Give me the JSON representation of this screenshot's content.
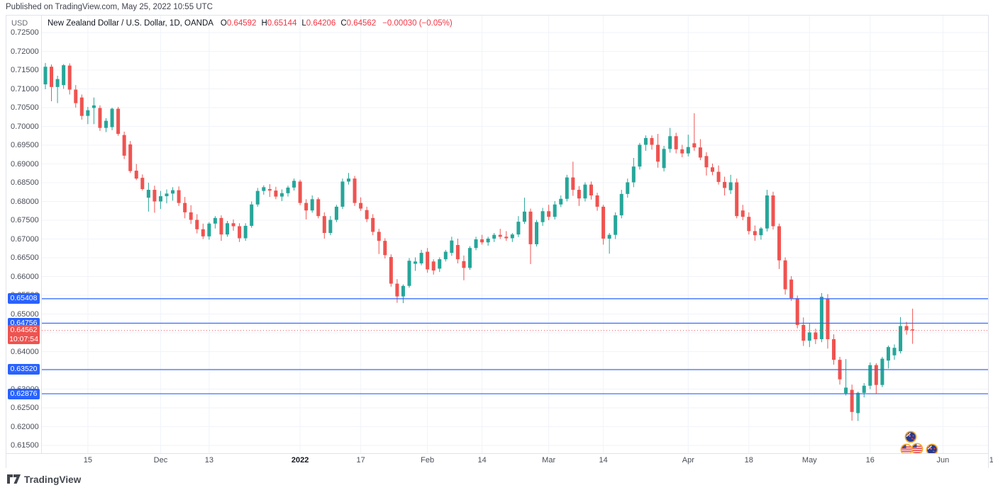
{
  "published_bar": {
    "text": "Published on TradingView.com, May 25, 2022 10:55 UTC"
  },
  "watermark": {
    "brand": "TradingView"
  },
  "price_axis": {
    "currency": "USD"
  },
  "symbol_line": {
    "title": "New Zealand Dollar / U.S. Dollar, 1D, OANDA",
    "ohlc": [
      {
        "label": "O",
        "value": "0.64592"
      },
      {
        "label": "H",
        "value": "0.65144"
      },
      {
        "label": "L",
        "value": "0.64206"
      },
      {
        "label": "C",
        "value": "0.64562"
      }
    ],
    "change": "−0.00030 (−0.05%)"
  },
  "chart_data": {
    "type": "candlestick",
    "title": "New Zealand Dollar / U.S. Dollar",
    "timeframe": "1D",
    "exchange": "OANDA",
    "legend_position": "top-left",
    "grid": true,
    "colors": {
      "up": "#26a69a",
      "down": "#ef5350",
      "grid": "#f0f3fa",
      "line_blue": "#2962ff",
      "last_red": "#ef5350"
    },
    "y_axis": {
      "min": 0.615,
      "max": 0.725,
      "tick_step": 0.005,
      "decimals": 5
    },
    "x_ticks": [
      {
        "index": 7,
        "label": "15"
      },
      {
        "index": 19,
        "label": "Dec"
      },
      {
        "index": 27,
        "label": "13"
      },
      {
        "index": 42,
        "label": "2022",
        "bold": true
      },
      {
        "index": 52,
        "label": "17"
      },
      {
        "index": 63,
        "label": "Feb"
      },
      {
        "index": 72,
        "label": "14"
      },
      {
        "index": 83,
        "label": "Mar"
      },
      {
        "index": 92,
        "label": "14"
      },
      {
        "index": 106,
        "label": "Apr"
      },
      {
        "index": 116,
        "label": "18"
      },
      {
        "index": 126,
        "label": "May"
      },
      {
        "index": 136,
        "label": "16"
      },
      {
        "index": 148,
        "label": "Jun"
      },
      {
        "index": 156,
        "label": "1"
      }
    ],
    "price_lines": [
      {
        "price": 0.65408,
        "label": "0.65408"
      },
      {
        "price": 0.64756,
        "label": "0.64756"
      },
      {
        "price": 0.6352,
        "label": "0.63520"
      },
      {
        "price": 0.62876,
        "label": "0.62876"
      }
    ],
    "last_price": {
      "price": 0.64562,
      "label": "0.64562",
      "countdown": "10:07:54"
    },
    "event_icons": [
      {
        "flag": "nz",
        "x": 1283,
        "y": 616
      },
      {
        "flag": "us",
        "x": 1277,
        "y": 634
      },
      {
        "flag": "us",
        "x": 1292,
        "y": 633
      },
      {
        "flag": "nz",
        "x": 1313,
        "y": 634
      }
    ],
    "candles": [
      [
        "Nov 4",
        0.7112,
        0.7169,
        0.7099,
        0.7159
      ],
      [
        "Nov 5",
        0.7159,
        0.7165,
        0.7067,
        0.7105
      ],
      [
        "Nov 8",
        0.7105,
        0.7135,
        0.7062,
        0.7126
      ],
      [
        "Nov 9",
        0.711,
        0.7166,
        0.71,
        0.7163
      ],
      [
        "Nov 10",
        0.7162,
        0.7168,
        0.7085,
        0.7098
      ],
      [
        "Nov 11",
        0.7098,
        0.711,
        0.705,
        0.7062
      ],
      [
        "Nov 12",
        0.7077,
        0.7085,
        0.7018,
        0.7028
      ],
      [
        "Nov 15",
        0.7028,
        0.7052,
        0.7006,
        0.7043
      ],
      [
        "Nov 16",
        0.7049,
        0.7077,
        0.7006,
        0.7056
      ],
      [
        "Nov 17",
        0.7049,
        0.7056,
        0.6988,
        0.6996
      ],
      [
        "Nov 18",
        0.6996,
        0.7022,
        0.6985,
        0.7015
      ],
      [
        "Nov 19",
        0.6998,
        0.705,
        0.699,
        0.7047
      ],
      [
        "Nov 22",
        0.7047,
        0.7052,
        0.6975,
        0.698
      ],
      [
        "Nov 23",
        0.6977,
        0.6986,
        0.6913,
        0.6922
      ],
      [
        "Nov 24",
        0.6952,
        0.6961,
        0.6876,
        0.6881
      ],
      [
        "Nov 25",
        0.6882,
        0.69,
        0.6857,
        0.6861
      ],
      [
        "Nov 26",
        0.6863,
        0.6872,
        0.6829,
        0.6833
      ],
      [
        "Nov 29",
        0.681,
        0.685,
        0.6773,
        0.6831
      ],
      [
        "Nov 30",
        0.6831,
        0.6842,
        0.677,
        0.68
      ],
      [
        "Dec 1",
        0.68,
        0.6828,
        0.678,
        0.6814
      ],
      [
        "Dec 2",
        0.6814,
        0.6832,
        0.6795,
        0.6821
      ],
      [
        "Dec 3",
        0.6821,
        0.6838,
        0.6802,
        0.683
      ],
      [
        "Dec 6",
        0.683,
        0.684,
        0.6788,
        0.6796
      ],
      [
        "Dec 7",
        0.6796,
        0.6812,
        0.6755,
        0.6771
      ],
      [
        "Dec 8",
        0.6771,
        0.679,
        0.674,
        0.6751
      ],
      [
        "Dec 9",
        0.6751,
        0.6766,
        0.6715,
        0.6726
      ],
      [
        "Dec 10",
        0.6726,
        0.6741,
        0.67,
        0.6707
      ],
      [
        "Dec 13",
        0.6707,
        0.6745,
        0.6698,
        0.6741
      ],
      [
        "Dec 14",
        0.6741,
        0.6761,
        0.6728,
        0.6756
      ],
      [
        "Dec 15",
        0.6756,
        0.6763,
        0.6695,
        0.6712
      ],
      [
        "Dec 16",
        0.6712,
        0.6748,
        0.6706,
        0.6742
      ],
      [
        "Dec 17",
        0.6742,
        0.6752,
        0.6722,
        0.6734
      ],
      [
        "Dec 20",
        0.6734,
        0.6742,
        0.6692,
        0.6702
      ],
      [
        "Dec 21",
        0.6702,
        0.6742,
        0.6695,
        0.6735
      ],
      [
        "Dec 22",
        0.6735,
        0.68,
        0.673,
        0.6792
      ],
      [
        "Dec 23",
        0.6792,
        0.6836,
        0.6786,
        0.6828
      ],
      [
        "Dec 24",
        0.6828,
        0.6843,
        0.6818,
        0.6838
      ],
      [
        "Dec 27",
        0.6833,
        0.6846,
        0.6812,
        0.6829
      ],
      [
        "Dec 28",
        0.6829,
        0.6839,
        0.6806,
        0.6813
      ],
      [
        "Dec 29",
        0.6813,
        0.6832,
        0.6801,
        0.6822
      ],
      [
        "Dec 30",
        0.6822,
        0.6842,
        0.6813,
        0.6837
      ],
      [
        "Dec 31",
        0.6837,
        0.6861,
        0.6829,
        0.6855
      ],
      [
        "Jan 3",
        0.6853,
        0.6858,
        0.679,
        0.6796
      ],
      [
        "Jan 4",
        0.6796,
        0.6806,
        0.6752,
        0.6776
      ],
      [
        "Jan 5",
        0.6776,
        0.6816,
        0.677,
        0.6806
      ],
      [
        "Jan 6",
        0.6806,
        0.6811,
        0.6755,
        0.6761
      ],
      [
        "Jan 7",
        0.6761,
        0.6771,
        0.6701,
        0.6716
      ],
      [
        "Jan 10",
        0.6716,
        0.6761,
        0.671,
        0.6751
      ],
      [
        "Jan 11",
        0.6751,
        0.6791,
        0.6745,
        0.6786
      ],
      [
        "Jan 12",
        0.6786,
        0.6861,
        0.678,
        0.6853
      ],
      [
        "Jan 13",
        0.6853,
        0.6876,
        0.6845,
        0.6861
      ],
      [
        "Jan 14",
        0.6861,
        0.6868,
        0.6788,
        0.6796
      ],
      [
        "Jan 17",
        0.6796,
        0.6811,
        0.6775,
        0.6781
      ],
      [
        "Jan 18",
        0.6777,
        0.6786,
        0.6745,
        0.6753
      ],
      [
        "Jan 19",
        0.6756,
        0.6766,
        0.671,
        0.6719
      ],
      [
        "Jan 20",
        0.6719,
        0.6727,
        0.666,
        0.6695
      ],
      [
        "Jan 21",
        0.6695,
        0.6702,
        0.6648,
        0.6657
      ],
      [
        "Jan 24",
        0.6652,
        0.6659,
        0.6573,
        0.6581
      ],
      [
        "Jan 25",
        0.6581,
        0.6593,
        0.653,
        0.6547
      ],
      [
        "Jan 26",
        0.6547,
        0.6579,
        0.6529,
        0.6575
      ],
      [
        "Jan 27",
        0.6575,
        0.6649,
        0.657,
        0.6642
      ],
      [
        "Jan 28",
        0.6634,
        0.6651,
        0.6615,
        0.664
      ],
      [
        "Jan 31",
        0.6635,
        0.6671,
        0.663,
        0.6663
      ],
      [
        "Feb 1",
        0.6666,
        0.6676,
        0.661,
        0.6619
      ],
      [
        "Feb 2",
        0.664,
        0.6646,
        0.6605,
        0.6616
      ],
      [
        "Feb 3",
        0.6621,
        0.6651,
        0.6612,
        0.6646
      ],
      [
        "Feb 4",
        0.6646,
        0.6671,
        0.664,
        0.6666
      ],
      [
        "Feb 7",
        0.6663,
        0.6706,
        0.6655,
        0.6696
      ],
      [
        "Feb 8",
        0.6684,
        0.6701,
        0.6635,
        0.6646
      ],
      [
        "Feb 9",
        0.6641,
        0.6656,
        0.659,
        0.6623
      ],
      [
        "Feb 10",
        0.6623,
        0.6681,
        0.6618,
        0.6676
      ],
      [
        "Feb 11",
        0.6676,
        0.6706,
        0.667,
        0.6699
      ],
      [
        "Feb 14",
        0.6699,
        0.6711,
        0.6685,
        0.6691
      ],
      [
        "Feb 15",
        0.6691,
        0.6706,
        0.6682,
        0.6701
      ],
      [
        "Feb 16",
        0.6701,
        0.6716,
        0.6692,
        0.6711
      ],
      [
        "Feb 17",
        0.6711,
        0.6727,
        0.67,
        0.6706
      ],
      [
        "Feb 18",
        0.6706,
        0.6721,
        0.6695,
        0.6702
      ],
      [
        "Feb 21",
        0.6702,
        0.6716,
        0.6692,
        0.6712
      ],
      [
        "Feb 22",
        0.6712,
        0.6761,
        0.6705,
        0.6746
      ],
      [
        "Feb 23",
        0.6746,
        0.681,
        0.674,
        0.6773
      ],
      [
        "Feb 24",
        0.6773,
        0.6781,
        0.6633,
        0.6686
      ],
      [
        "Feb 25",
        0.6686,
        0.6751,
        0.668,
        0.6745
      ],
      [
        "Feb 28",
        0.6745,
        0.6783,
        0.6735,
        0.6774
      ],
      [
        "Mar 1",
        0.6774,
        0.6791,
        0.675,
        0.6759
      ],
      [
        "Mar 2",
        0.6759,
        0.6801,
        0.6752,
        0.6792
      ],
      [
        "Mar 3",
        0.6792,
        0.6816,
        0.6785,
        0.6807
      ],
      [
        "Mar 4",
        0.6807,
        0.6871,
        0.68,
        0.6864
      ],
      [
        "Mar 7",
        0.6864,
        0.6906,
        0.6815,
        0.6831
      ],
      [
        "Mar 8",
        0.6831,
        0.6841,
        0.6788,
        0.6808
      ],
      [
        "Mar 9",
        0.6808,
        0.6851,
        0.68,
        0.6845
      ],
      [
        "Mar 10",
        0.6845,
        0.6853,
        0.6805,
        0.6816
      ],
      [
        "Mar 11",
        0.6816,
        0.6823,
        0.6775,
        0.6786
      ],
      [
        "Mar 14",
        0.6786,
        0.6791,
        0.6685,
        0.6701
      ],
      [
        "Mar 15",
        0.6701,
        0.6716,
        0.6661,
        0.6711
      ],
      [
        "Mar 16",
        0.6711,
        0.6771,
        0.67,
        0.6763
      ],
      [
        "Mar 17",
        0.6763,
        0.6831,
        0.6755,
        0.682
      ],
      [
        "Mar 18",
        0.682,
        0.6861,
        0.681,
        0.6851
      ],
      [
        "Mar 21",
        0.6851,
        0.6916,
        0.6838,
        0.6893
      ],
      [
        "Mar 22",
        0.6893,
        0.6956,
        0.6885,
        0.6951
      ],
      [
        "Mar 23",
        0.6951,
        0.6976,
        0.6935,
        0.6969
      ],
      [
        "Mar 24",
        0.6969,
        0.6976,
        0.6938,
        0.6951
      ],
      [
        "Mar 25",
        0.6951,
        0.698,
        0.689,
        0.6906
      ],
      [
        "Mar 28",
        0.6889,
        0.6948,
        0.688,
        0.694
      ],
      [
        "Mar 29",
        0.694,
        0.6996,
        0.693,
        0.6974
      ],
      [
        "Mar 30",
        0.6974,
        0.6983,
        0.6928,
        0.6939
      ],
      [
        "Mar 31",
        0.6939,
        0.6951,
        0.6918,
        0.6928
      ],
      [
        "Apr 1",
        0.6928,
        0.6978,
        0.692,
        0.6945
      ],
      [
        "Apr 4",
        0.6955,
        0.7035,
        0.6935,
        0.6944
      ],
      [
        "Apr 5",
        0.6944,
        0.6966,
        0.691,
        0.6917
      ],
      [
        "Apr 6",
        0.6921,
        0.6931,
        0.6869,
        0.6891
      ],
      [
        "Apr 7",
        0.6891,
        0.6901,
        0.687,
        0.6879
      ],
      [
        "Apr 8",
        0.6879,
        0.6896,
        0.6845,
        0.6852
      ],
      [
        "Apr 11",
        0.6852,
        0.6866,
        0.6816,
        0.6836
      ],
      [
        "Apr 12",
        0.683,
        0.6871,
        0.682,
        0.6851
      ],
      [
        "Apr 13",
        0.6851,
        0.6861,
        0.6755,
        0.6761
      ],
      [
        "Apr 14",
        0.6776,
        0.6791,
        0.675,
        0.6759
      ],
      [
        "Apr 18",
        0.6759,
        0.6771,
        0.6712,
        0.6721
      ],
      [
        "Apr 19",
        0.6721,
        0.6736,
        0.6695,
        0.671
      ],
      [
        "Apr 20",
        0.671,
        0.6732,
        0.6698,
        0.6728
      ],
      [
        "Apr 21",
        0.6728,
        0.6831,
        0.672,
        0.6816
      ],
      [
        "Apr 22",
        0.6816,
        0.6826,
        0.6725,
        0.6734
      ],
      [
        "Apr 25",
        0.6734,
        0.6741,
        0.662,
        0.6643
      ],
      [
        "Apr 26",
        0.6643,
        0.6651,
        0.6552,
        0.6566
      ],
      [
        "Apr 27",
        0.6592,
        0.6601,
        0.6535,
        0.6542
      ],
      [
        "Apr 28",
        0.6542,
        0.6549,
        0.6462,
        0.6471
      ],
      [
        "Apr 29",
        0.6471,
        0.6491,
        0.6415,
        0.6429
      ],
      [
        "May 2",
        0.6429,
        0.6476,
        0.6412,
        0.6451
      ],
      [
        "May 3",
        0.6451,
        0.6461,
        0.642,
        0.6433
      ],
      [
        "May 4",
        0.6433,
        0.6556,
        0.6425,
        0.6546
      ],
      [
        "May 5",
        0.6541,
        0.6553,
        0.6408,
        0.6433
      ],
      [
        "May 6",
        0.6433,
        0.6446,
        0.6365,
        0.6378
      ],
      [
        "May 9",
        0.6378,
        0.6386,
        0.6312,
        0.6326
      ],
      [
        "May 10",
        0.6289,
        0.638,
        0.6283,
        0.6304
      ],
      [
        "May 11",
        0.6298,
        0.6312,
        0.6216,
        0.6239
      ],
      [
        "May 12",
        0.6236,
        0.6293,
        0.6215,
        0.629
      ],
      [
        "May 13",
        0.629,
        0.6316,
        0.6278,
        0.6309
      ],
      [
        "May 16",
        0.6309,
        0.6371,
        0.63,
        0.6364
      ],
      [
        "May 17",
        0.6364,
        0.6369,
        0.6288,
        0.6311
      ],
      [
        "May 18",
        0.6311,
        0.6386,
        0.6305,
        0.6381
      ],
      [
        "May 19",
        0.6376,
        0.6416,
        0.6355,
        0.6412
      ],
      [
        "May 20",
        0.639,
        0.6419,
        0.6378,
        0.641
      ],
      [
        "May 23",
        0.6401,
        0.6492,
        0.6395,
        0.6468
      ],
      [
        "May 24",
        0.6468,
        0.6479,
        0.6445,
        0.6457
      ],
      [
        "May 25",
        0.64592,
        0.65144,
        0.64206,
        0.64562
      ]
    ]
  }
}
